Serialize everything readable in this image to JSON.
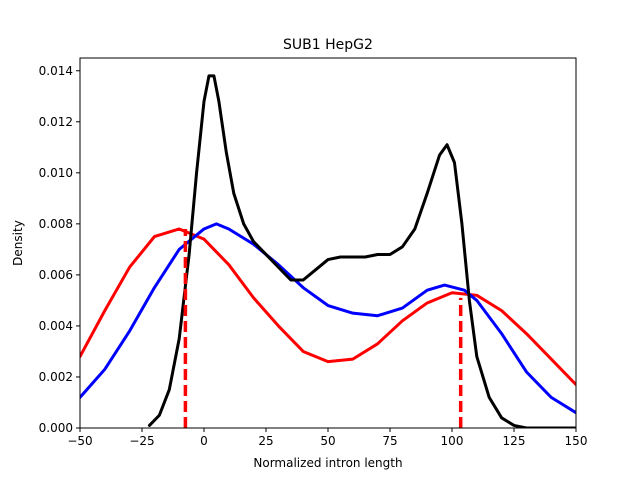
{
  "chart_data": {
    "type": "line",
    "title": "SUB1 HepG2",
    "xlabel": "Normalized intron length",
    "ylabel": "Density",
    "xlim": [
      -50,
      150
    ],
    "ylim": [
      0,
      0.0145
    ],
    "xticks": [
      -50,
      -25,
      0,
      25,
      50,
      75,
      100,
      125,
      150
    ],
    "yticks": [
      0,
      0.002,
      0.004,
      0.006,
      0.008,
      0.01,
      0.012,
      0.014
    ],
    "xtick_labels": [
      "−50",
      "−25",
      "0",
      "25",
      "50",
      "75",
      "100",
      "125",
      "150"
    ],
    "ytick_labels": [
      "0.000",
      "0.002",
      "0.004",
      "0.006",
      "0.008",
      "0.010",
      "0.012",
      "0.014"
    ],
    "grid": false,
    "legend": "none",
    "series": [
      {
        "color": "#ff0000",
        "points": [
          [
            -50,
            0.0028
          ],
          [
            -40,
            0.0046
          ],
          [
            -30,
            0.0063
          ],
          [
            -20,
            0.0075
          ],
          [
            -10,
            0.0078
          ],
          [
            0,
            0.0074
          ],
          [
            10,
            0.0064
          ],
          [
            20,
            0.0051
          ],
          [
            30,
            0.004
          ],
          [
            40,
            0.003
          ],
          [
            50,
            0.0026
          ],
          [
            60,
            0.0027
          ],
          [
            70,
            0.0033
          ],
          [
            80,
            0.0042
          ],
          [
            90,
            0.0049
          ],
          [
            100,
            0.0053
          ],
          [
            110,
            0.0052
          ],
          [
            120,
            0.0046
          ],
          [
            130,
            0.0037
          ],
          [
            140,
            0.0027
          ],
          [
            150,
            0.0017
          ]
        ]
      },
      {
        "color": "#0000ff",
        "points": [
          [
            -50,
            0.0012
          ],
          [
            -40,
            0.0023
          ],
          [
            -30,
            0.0038
          ],
          [
            -20,
            0.0055
          ],
          [
            -10,
            0.007
          ],
          [
            0,
            0.0078
          ],
          [
            5,
            0.008
          ],
          [
            10,
            0.0078
          ],
          [
            20,
            0.0072
          ],
          [
            30,
            0.0064
          ],
          [
            40,
            0.0055
          ],
          [
            50,
            0.0048
          ],
          [
            60,
            0.0045
          ],
          [
            70,
            0.0044
          ],
          [
            80,
            0.0047
          ],
          [
            90,
            0.0054
          ],
          [
            97,
            0.0056
          ],
          [
            105,
            0.0054
          ],
          [
            110,
            0.005
          ],
          [
            120,
            0.0037
          ],
          [
            130,
            0.0022
          ],
          [
            140,
            0.0012
          ],
          [
            150,
            0.0006
          ]
        ]
      },
      {
        "color": "#000000",
        "points": [
          [
            -22,
            0.0001
          ],
          [
            -18,
            0.0005
          ],
          [
            -14,
            0.0015
          ],
          [
            -10,
            0.0035
          ],
          [
            -6,
            0.0068
          ],
          [
            -3,
            0.01
          ],
          [
            0,
            0.0128
          ],
          [
            2,
            0.0138
          ],
          [
            4,
            0.0138
          ],
          [
            6,
            0.0128
          ],
          [
            9,
            0.0108
          ],
          [
            12,
            0.0092
          ],
          [
            16,
            0.008
          ],
          [
            20,
            0.0073
          ],
          [
            25,
            0.0068
          ],
          [
            30,
            0.0063
          ],
          [
            35,
            0.0058
          ],
          [
            40,
            0.0058
          ],
          [
            45,
            0.0062
          ],
          [
            50,
            0.0066
          ],
          [
            55,
            0.0067
          ],
          [
            60,
            0.0067
          ],
          [
            65,
            0.0067
          ],
          [
            70,
            0.0068
          ],
          [
            75,
            0.0068
          ],
          [
            80,
            0.0071
          ],
          [
            85,
            0.0078
          ],
          [
            90,
            0.0092
          ],
          [
            95,
            0.0107
          ],
          [
            98,
            0.0111
          ],
          [
            101,
            0.0104
          ],
          [
            104,
            0.008
          ],
          [
            107,
            0.005
          ],
          [
            110,
            0.0028
          ],
          [
            115,
            0.0012
          ],
          [
            120,
            0.0004
          ],
          [
            125,
            0.0001
          ],
          [
            130,
            0.0
          ],
          [
            140,
            0.0
          ],
          [
            150,
            0.0
          ]
        ]
      }
    ],
    "vlines": [
      {
        "x": -7.5,
        "y": 0.0078,
        "color": "#ff0000",
        "style": "dashed"
      },
      {
        "x": 103.5,
        "y": 0.0051,
        "color": "#ff0000",
        "style": "dashed"
      }
    ]
  }
}
